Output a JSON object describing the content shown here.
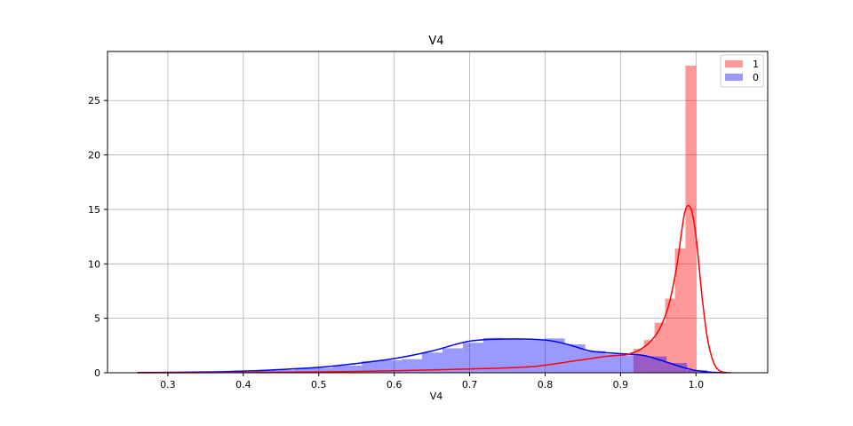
{
  "chart_data": {
    "type": "bar",
    "title": "V4",
    "xlabel": "V4",
    "ylabel": "",
    "xlim": [
      0.22,
      1.095
    ],
    "ylim": [
      0,
      29.5
    ],
    "xticks": [
      0.3,
      0.4,
      0.5,
      0.6,
      0.7,
      0.8,
      0.9,
      1.0
    ],
    "xtick_labels": [
      "0.3",
      "0.4",
      "0.5",
      "0.6",
      "0.7",
      "0.8",
      "0.9",
      "1.0"
    ],
    "yticks": [
      0,
      5,
      10,
      15,
      20,
      25
    ],
    "ytick_labels": [
      "0",
      "5",
      "10",
      "15",
      "20",
      "25"
    ],
    "grid": true,
    "legend_position": "top-right",
    "series": [
      {
        "name": "1",
        "color": "#ff0000",
        "hist_bins": [
          {
            "x0": 0.917,
            "x1": 0.931,
            "y": 2.2
          },
          {
            "x0": 0.931,
            "x1": 0.945,
            "y": 3.0
          },
          {
            "x0": 0.945,
            "x1": 0.959,
            "y": 4.6
          },
          {
            "x0": 0.959,
            "x1": 0.972,
            "y": 6.8
          },
          {
            "x0": 0.972,
            "x1": 0.986,
            "y": 11.4
          },
          {
            "x0": 0.986,
            "x1": 1.0,
            "y": 28.2
          }
        ],
        "kde": {
          "x": [
            0.26,
            0.4,
            0.5,
            0.6,
            0.7,
            0.78,
            0.84,
            0.88,
            0.91,
            0.93,
            0.945,
            0.955,
            0.965,
            0.975,
            0.985,
            0.993,
            1.0,
            1.008,
            1.015,
            1.023,
            1.032,
            1.045
          ],
          "y": [
            0.0,
            0.03,
            0.08,
            0.18,
            0.35,
            0.55,
            1.1,
            1.5,
            1.7,
            2.3,
            3.3,
            4.5,
            6.5,
            10.0,
            14.7,
            15.1,
            12.5,
            7.0,
            3.2,
            1.0,
            0.15,
            0.0
          ]
        }
      },
      {
        "name": "0",
        "color": "#0000ff",
        "hist_bins": [
          {
            "x0": 0.258,
            "x1": 0.337,
            "y": 0.03
          },
          {
            "x0": 0.337,
            "x1": 0.417,
            "y": 0.08
          },
          {
            "x0": 0.417,
            "x1": 0.468,
            "y": 0.25
          },
          {
            "x0": 0.468,
            "x1": 0.519,
            "y": 0.45
          },
          {
            "x0": 0.519,
            "x1": 0.557,
            "y": 0.65
          },
          {
            "x0": 0.557,
            "x1": 0.583,
            "y": 1.05
          },
          {
            "x0": 0.583,
            "x1": 0.61,
            "y": 1.15
          },
          {
            "x0": 0.61,
            "x1": 0.637,
            "y": 1.25
          },
          {
            "x0": 0.637,
            "x1": 0.664,
            "y": 1.85
          },
          {
            "x0": 0.664,
            "x1": 0.691,
            "y": 2.25
          },
          {
            "x0": 0.691,
            "x1": 0.718,
            "y": 2.75
          },
          {
            "x0": 0.718,
            "x1": 0.745,
            "y": 3.2
          },
          {
            "x0": 0.745,
            "x1": 0.772,
            "y": 3.05
          },
          {
            "x0": 0.772,
            "x1": 0.799,
            "y": 3.0
          },
          {
            "x0": 0.799,
            "x1": 0.826,
            "y": 3.15
          },
          {
            "x0": 0.826,
            "x1": 0.853,
            "y": 2.6
          },
          {
            "x0": 0.853,
            "x1": 0.88,
            "y": 2.0
          },
          {
            "x0": 0.88,
            "x1": 0.907,
            "y": 1.7
          },
          {
            "x0": 0.907,
            "x1": 0.934,
            "y": 1.6
          },
          {
            "x0": 0.934,
            "x1": 0.961,
            "y": 1.5
          },
          {
            "x0": 0.961,
            "x1": 0.988,
            "y": 0.9
          },
          {
            "x0": 0.988,
            "x1": 1.015,
            "y": 0.25
          },
          {
            "x0": 1.015,
            "x1": 1.055,
            "y": 0.05
          }
        ],
        "kde": {
          "x": [
            0.26,
            0.35,
            0.4,
            0.45,
            0.5,
            0.55,
            0.6,
            0.65,
            0.7,
            0.75,
            0.8,
            0.83,
            0.86,
            0.9,
            0.93,
            0.96,
            0.98,
            1.0,
            1.02,
            1.04
          ],
          "y": [
            0.02,
            0.07,
            0.15,
            0.3,
            0.5,
            0.85,
            1.3,
            2.0,
            2.9,
            3.1,
            3.0,
            2.6,
            2.0,
            1.75,
            1.6,
            1.0,
            0.55,
            0.2,
            0.05,
            0.0
          ]
        }
      }
    ]
  }
}
